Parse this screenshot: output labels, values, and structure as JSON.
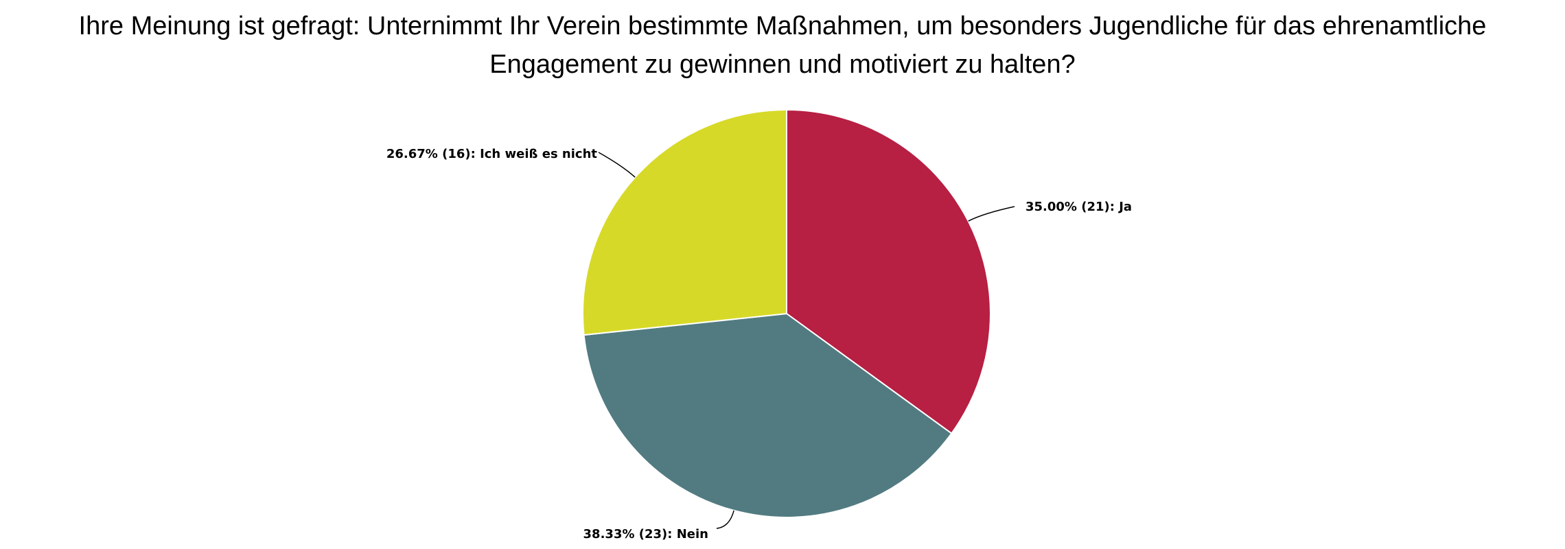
{
  "chart_data": {
    "type": "pie",
    "title_lines": [
      "Ihre Meinung ist gefragt: Unternimmt Ihr Verein bestimmte Maßnahmen, um besonders Jugendliche für das ehrenamtliche",
      "Engagement zu gewinnen und motiviert zu halten?"
    ],
    "start_angle": "top",
    "direction": "clockwise",
    "slices": [
      {
        "label": "Ja",
        "percent": 35.0,
        "count": 21,
        "color": "#B71F43",
        "data_label": "35.00% (21): Ja"
      },
      {
        "label": "Nein",
        "percent": 38.33,
        "count": 23,
        "color": "#517B81",
        "data_label": "38.33% (23): Nein"
      },
      {
        "label": "Ich weiß es nicht",
        "percent": 26.67,
        "count": 16,
        "color": "#D7D928",
        "data_label": "26.67% (16): Ich weiß es nicht"
      }
    ]
  }
}
